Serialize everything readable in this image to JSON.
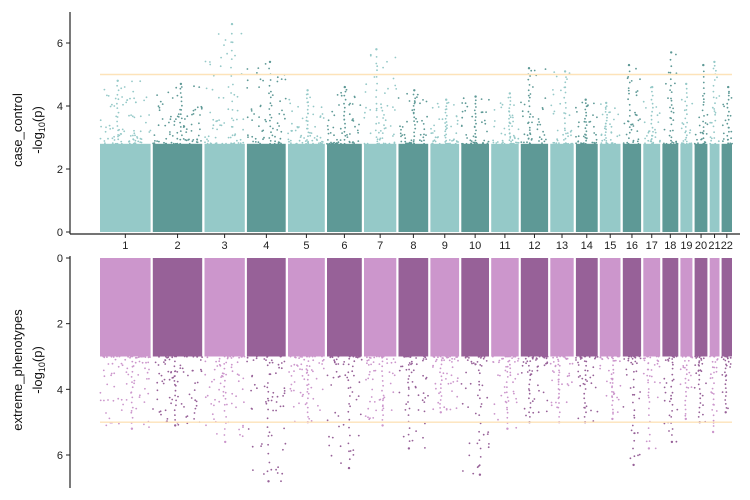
{
  "colors": {
    "case_light": "#95c9c8",
    "case_dark": "#5e9996",
    "ext_light": "#cc96cc",
    "ext_dark": "#976198",
    "threshold": "#fde3b9"
  },
  "chart_data": [
    {
      "type": "scatter",
      "panel": "top",
      "ylabel_main": "case_control",
      "ylabel_sub_prefix": "-log",
      "ylabel_sub_base": "10",
      "ylabel_sub_suffix": "(p)",
      "ylim": [
        0,
        7
      ],
      "yticks": [
        "0",
        "2",
        "4",
        "6"
      ],
      "threshold": 5,
      "chromosomes": [
        "1",
        "2",
        "3",
        "4",
        "5",
        "6",
        "7",
        "8",
        "9",
        "10",
        "11",
        "12",
        "13",
        "14",
        "15",
        "16",
        "17",
        "18",
        "19",
        "20",
        "21",
        "22"
      ],
      "chrom_peaks": [
        4.8,
        4.7,
        6.6,
        5.4,
        4.5,
        4.6,
        5.8,
        4.5,
        4.2,
        4.3,
        4.4,
        5.2,
        5.1,
        4.2,
        4.1,
        5.3,
        4.6,
        5.7,
        4.7,
        5.3,
        5.4,
        4.6
      ]
    },
    {
      "type": "scatter",
      "panel": "bottom",
      "ylabel_main": "extreme_phenotypes",
      "ylabel_sub_prefix": "-log",
      "ylabel_sub_base": "10",
      "ylabel_sub_suffix": "(p)",
      "ylim": [
        0,
        7
      ],
      "yticks": [
        "0",
        "2",
        "4",
        "6"
      ],
      "reversed": true,
      "threshold": 5,
      "chromosomes": [
        "1",
        "2",
        "3",
        "4",
        "5",
        "6",
        "7",
        "8",
        "9",
        "10",
        "11",
        "12",
        "13",
        "14",
        "15",
        "16",
        "17",
        "18",
        "19",
        "20",
        "21",
        "22"
      ],
      "chrom_peaks": [
        5.2,
        5.1,
        5.6,
        6.8,
        5.0,
        6.4,
        5.1,
        5.8,
        4.7,
        6.6,
        5.2,
        5.0,
        5.0,
        5.0,
        4.9,
        6.3,
        5.8,
        5.6,
        4.9,
        5.0,
        5.3,
        4.7
      ]
    }
  ]
}
